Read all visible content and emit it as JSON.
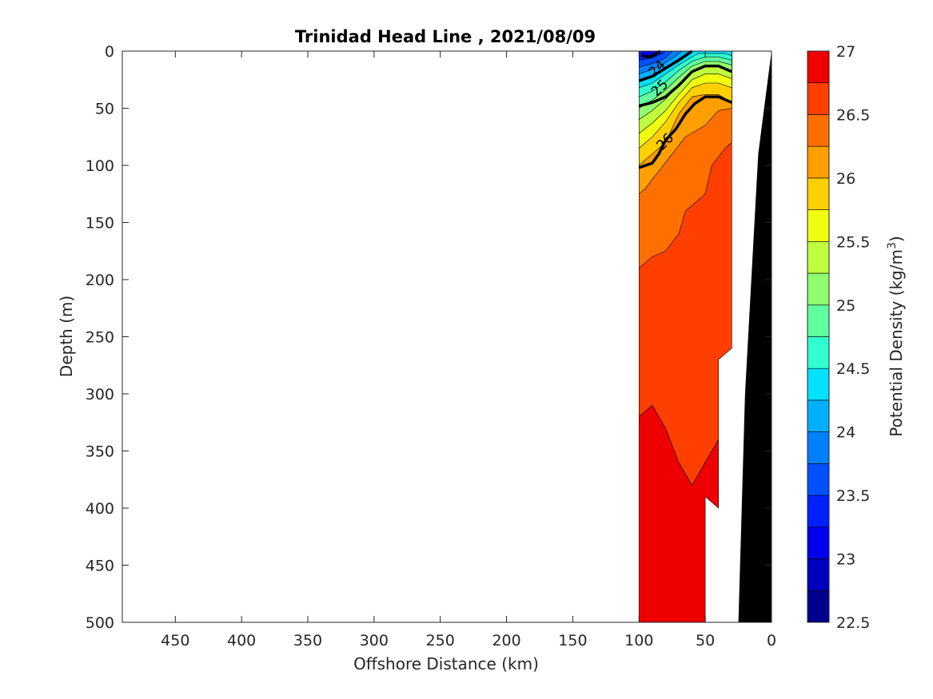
{
  "chart_data": {
    "type": "heatmap",
    "subtype": "filled-contour-section",
    "title": "Trinidad Head Line , 2021/08/09",
    "xlabel": "Offshore Distance (km)",
    "ylabel": "Depth (m)",
    "x_reversed": true,
    "y_reversed": true,
    "xlim": [
      490,
      0
    ],
    "ylim": [
      500,
      0
    ],
    "xticks": [
      450,
      400,
      350,
      300,
      250,
      200,
      150,
      100,
      50,
      0
    ],
    "yticks": [
      0,
      50,
      100,
      150,
      200,
      250,
      300,
      350,
      400,
      450,
      500
    ],
    "colorbar": {
      "label": "Potential Density (kg/m",
      "label_superscript": "3",
      "label_suffix": ")",
      "range": [
        22.5,
        27
      ],
      "ticks": [
        27,
        26.5,
        26,
        25.5,
        25,
        24.5,
        24,
        23.5,
        23,
        22.5
      ],
      "levels": [
        22.5,
        22.75,
        23,
        23.25,
        23.5,
        23.75,
        24,
        24.25,
        24.5,
        24.75,
        25,
        25.25,
        25.5,
        25.75,
        26,
        26.25,
        26.5,
        26.75,
        27
      ],
      "colors": [
        "#00008f",
        "#0000bf",
        "#0000ef",
        "#0020ff",
        "#0050ff",
        "#0080ff",
        "#00b0ff",
        "#00e0ff",
        "#30ffcf",
        "#60ff9f",
        "#90ff6f",
        "#c0ff3f",
        "#f0ff0f",
        "#ffd000",
        "#ff9f00",
        "#ff6f00",
        "#ff3f00",
        "#ef0000",
        "#af0000"
      ]
    },
    "data_extent_km": [
      100,
      30
    ],
    "bathymetry_color": "#000000",
    "bottom_profile": [
      [
        0,
        0
      ],
      [
        10,
        90
      ],
      [
        20,
        300
      ],
      [
        25,
        500
      ]
    ],
    "contour_labels": [
      {
        "text": "24",
        "x": 84,
        "y": 18
      },
      {
        "text": "25",
        "x": 82,
        "y": 35
      },
      {
        "text": "26",
        "x": 78,
        "y": 82
      }
    ],
    "regions": [
      {
        "level": 26.75,
        "poly": [
          [
            100,
            500
          ],
          [
            100,
            320
          ],
          [
            90,
            310
          ],
          [
            80,
            330
          ],
          [
            70,
            360
          ],
          [
            60,
            380
          ],
          [
            50,
            360
          ],
          [
            40,
            340
          ],
          [
            40,
            400
          ],
          [
            50,
            390
          ],
          [
            50,
            500
          ]
        ]
      },
      {
        "level": 26.5,
        "poly": [
          [
            100,
            320
          ],
          [
            90,
            310
          ],
          [
            80,
            330
          ],
          [
            70,
            360
          ],
          [
            60,
            380
          ],
          [
            50,
            360
          ],
          [
            40,
            340
          ],
          [
            40,
            270
          ],
          [
            30,
            260
          ],
          [
            30,
            0
          ],
          [
            100,
            0
          ]
        ]
      },
      {
        "level": 26.25,
        "poly": [
          [
            100,
            190
          ],
          [
            95,
            185
          ],
          [
            90,
            180
          ],
          [
            80,
            175
          ],
          [
            70,
            160
          ],
          [
            65,
            140
          ],
          [
            60,
            135
          ],
          [
            50,
            125
          ],
          [
            45,
            100
          ],
          [
            35,
            85
          ],
          [
            30,
            80
          ],
          [
            30,
            0
          ],
          [
            100,
            0
          ]
        ]
      },
      {
        "level": 26.0,
        "poly": [
          [
            100,
            125
          ],
          [
            95,
            120
          ],
          [
            90,
            112
          ],
          [
            85,
            105
          ],
          [
            75,
            90
          ],
          [
            65,
            75
          ],
          [
            50,
            65
          ],
          [
            40,
            52
          ],
          [
            30,
            50
          ],
          [
            30,
            0
          ],
          [
            100,
            0
          ]
        ]
      },
      {
        "level": 25.75,
        "poly": [
          [
            100,
            100
          ],
          [
            90,
            90
          ],
          [
            80,
            80
          ],
          [
            70,
            55
          ],
          [
            60,
            40
          ],
          [
            50,
            38
          ],
          [
            40,
            38
          ],
          [
            30,
            45
          ],
          [
            30,
            0
          ],
          [
            100,
            0
          ]
        ]
      },
      {
        "level": 25.5,
        "poly": [
          [
            100,
            85
          ],
          [
            90,
            75
          ],
          [
            80,
            62
          ],
          [
            70,
            45
          ],
          [
            60,
            32
          ],
          [
            50,
            28
          ],
          [
            40,
            28
          ],
          [
            30,
            32
          ],
          [
            30,
            0
          ],
          [
            100,
            0
          ]
        ]
      },
      {
        "level": 25.25,
        "poly": [
          [
            100,
            72
          ],
          [
            90,
            63
          ],
          [
            80,
            52
          ],
          [
            70,
            38
          ],
          [
            60,
            25
          ],
          [
            50,
            20
          ],
          [
            40,
            20
          ],
          [
            30,
            24
          ],
          [
            30,
            0
          ],
          [
            100,
            0
          ]
        ]
      },
      {
        "level": 25.0,
        "poly": [
          [
            100,
            60
          ],
          [
            90,
            52
          ],
          [
            80,
            42
          ],
          [
            70,
            30
          ],
          [
            60,
            18
          ],
          [
            50,
            13
          ],
          [
            40,
            13
          ],
          [
            30,
            17
          ],
          [
            30,
            0
          ],
          [
            100,
            0
          ]
        ]
      },
      {
        "level": 24.75,
        "poly": [
          [
            100,
            50
          ],
          [
            90,
            43
          ],
          [
            80,
            34
          ],
          [
            70,
            23
          ],
          [
            60,
            13
          ],
          [
            50,
            9
          ],
          [
            40,
            9
          ],
          [
            30,
            12
          ],
          [
            30,
            0
          ],
          [
            100,
            0
          ]
        ]
      },
      {
        "level": 24.5,
        "poly": [
          [
            100,
            40
          ],
          [
            90,
            35
          ],
          [
            80,
            27
          ],
          [
            70,
            17
          ],
          [
            60,
            9
          ],
          [
            50,
            5
          ],
          [
            40,
            5
          ],
          [
            30,
            8
          ],
          [
            30,
            0
          ],
          [
            100,
            0
          ]
        ]
      },
      {
        "level": 24.25,
        "poly": [
          [
            100,
            32
          ],
          [
            90,
            28
          ],
          [
            80,
            20
          ],
          [
            70,
            12
          ],
          [
            60,
            5
          ],
          [
            55,
            2
          ],
          [
            35,
            2
          ],
          [
            30,
            4
          ],
          [
            30,
            0
          ],
          [
            100,
            0
          ]
        ]
      },
      {
        "level": 24.0,
        "poly": [
          [
            100,
            26
          ],
          [
            90,
            22
          ],
          [
            80,
            15
          ],
          [
            70,
            8
          ],
          [
            62,
            2
          ],
          [
            60,
            0
          ],
          [
            100,
            0
          ]
        ]
      },
      {
        "level": 23.75,
        "poly": [
          [
            100,
            20
          ],
          [
            90,
            16
          ],
          [
            80,
            10
          ],
          [
            72,
            4
          ],
          [
            68,
            0
          ],
          [
            100,
            0
          ]
        ]
      },
      {
        "level": 23.5,
        "poly": [
          [
            100,
            14
          ],
          [
            90,
            11
          ],
          [
            80,
            6
          ],
          [
            75,
            0
          ],
          [
            100,
            0
          ]
        ]
      },
      {
        "level": 23.25,
        "poly": [
          [
            100,
            8
          ],
          [
            90,
            6
          ],
          [
            82,
            2
          ],
          [
            80,
            0
          ],
          [
            100,
            0
          ]
        ]
      },
      {
        "level": 23.0,
        "poly": [
          [
            98,
            4
          ],
          [
            92,
            5
          ],
          [
            86,
            2
          ],
          [
            84,
            0
          ],
          [
            98,
            0
          ]
        ]
      }
    ],
    "bold_contours": [
      {
        "level": 26.0,
        "points": [
          [
            100,
            102
          ],
          [
            90,
            98
          ],
          [
            85,
            90
          ],
          [
            80,
            78
          ],
          [
            72,
            68
          ],
          [
            65,
            55
          ],
          [
            58,
            46
          ],
          [
            50,
            40
          ],
          [
            40,
            40
          ],
          [
            30,
            45
          ]
        ]
      },
      {
        "level": 25.0,
        "points": [
          [
            100,
            48
          ],
          [
            90,
            45
          ],
          [
            80,
            40
          ],
          [
            70,
            30
          ],
          [
            60,
            18
          ],
          [
            50,
            13
          ],
          [
            40,
            13
          ],
          [
            30,
            18
          ]
        ]
      },
      {
        "level": 24.0,
        "points": [
          [
            100,
            26
          ],
          [
            95,
            24
          ],
          [
            90,
            22
          ],
          [
            80,
            15
          ],
          [
            70,
            8
          ],
          [
            60,
            0
          ]
        ]
      },
      {
        "level": 23.0,
        "points": [
          [
            98,
            4
          ],
          [
            92,
            5
          ],
          [
            88,
            3
          ],
          [
            84,
            0
          ]
        ]
      }
    ]
  }
}
